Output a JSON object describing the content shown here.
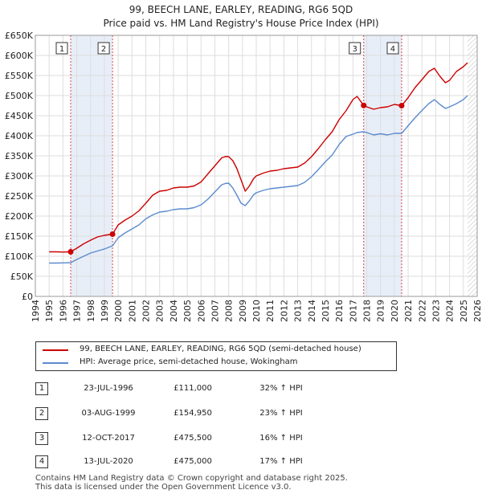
{
  "chart_data": {
    "type": "line",
    "title": "99, BEECH LANE, EARLEY, READING, RG6 5QD",
    "subtitle": "Price paid vs. HM Land Registry's House Price Index (HPI)",
    "xlabel": "",
    "ylabel": "",
    "xlim": [
      1994,
      2026
    ],
    "ylim": [
      0,
      650000
    ],
    "y_ticks": [
      0,
      50000,
      100000,
      150000,
      200000,
      250000,
      300000,
      350000,
      400000,
      450000,
      500000,
      550000,
      600000,
      650000
    ],
    "y_tick_labels": [
      "£0",
      "£50K",
      "£100K",
      "£150K",
      "£200K",
      "£250K",
      "£300K",
      "£350K",
      "£400K",
      "£450K",
      "£500K",
      "£550K",
      "£600K",
      "£650K"
    ],
    "x_ticks": [
      1994,
      1995,
      1996,
      1997,
      1998,
      1999,
      2000,
      2001,
      2002,
      2003,
      2004,
      2005,
      2006,
      2007,
      2008,
      2009,
      2010,
      2011,
      2012,
      2013,
      2014,
      2015,
      2016,
      2017,
      2018,
      2019,
      2020,
      2021,
      2022,
      2023,
      2024,
      2025,
      2026
    ],
    "x_tick_labels": [
      "1994",
      "1995",
      "1996",
      "1997",
      "1998",
      "1999",
      "2000",
      "2001",
      "2002",
      "2003",
      "2004",
      "2005",
      "2006",
      "2007",
      "2008",
      "2009",
      "2010",
      "2011",
      "2012",
      "2013",
      "2014",
      "2015",
      "2016",
      "2017",
      "2018",
      "2019",
      "2020",
      "2021",
      "2022",
      "2023",
      "2024",
      "2025",
      "2026"
    ],
    "grid": true,
    "series": [
      {
        "name": "99, BEECH LANE, EARLEY, READING, RG6 5QD (semi-detached house)",
        "color": "#cc0000",
        "x": [
          1995.0,
          1995.5,
          1996.0,
          1996.56,
          1997.0,
          1997.5,
          1998.0,
          1998.5,
          1999.0,
          1999.59,
          2000.0,
          2000.5,
          2001.0,
          2001.5,
          2002.0,
          2002.5,
          2003.0,
          2003.5,
          2004.0,
          2004.5,
          2005.0,
          2005.5,
          2006.0,
          2006.5,
          2007.0,
          2007.5,
          2007.75,
          2008.0,
          2008.3,
          2008.6,
          2008.9,
          2009.2,
          2009.5,
          2009.8,
          2010.0,
          2010.5,
          2011.0,
          2011.5,
          2012.0,
          2012.5,
          2013.0,
          2013.5,
          2014.0,
          2014.5,
          2015.0,
          2015.5,
          2016.0,
          2016.5,
          2017.0,
          2017.3,
          2017.78,
          2018.0,
          2018.5,
          2019.0,
          2019.5,
          2020.0,
          2020.53,
          2021.0,
          2021.5,
          2022.0,
          2022.5,
          2022.9,
          2023.3,
          2023.7,
          2024.0,
          2024.5,
          2025.0,
          2025.3
        ],
        "values": [
          111000,
          111000,
          110500,
          111000,
          120000,
          131000,
          140000,
          148000,
          152000,
          154950,
          178000,
          190000,
          200000,
          213000,
          232000,
          252000,
          262000,
          264000,
          270000,
          272000,
          272000,
          275000,
          285000,
          305000,
          325000,
          345000,
          348000,
          348000,
          338000,
          318000,
          290000,
          262000,
          275000,
          293000,
          300000,
          307000,
          312000,
          314000,
          318000,
          320000,
          322000,
          332000,
          348000,
          368000,
          390000,
          410000,
          440000,
          462000,
          490000,
          498000,
          475500,
          472000,
          466000,
          470000,
          472000,
          478000,
          475000,
          495000,
          520000,
          540000,
          560000,
          568000,
          548000,
          532000,
          538000,
          560000,
          572000,
          582000
        ]
      },
      {
        "name": "HPI: Average price, semi-detached house, Wokingham",
        "color": "#5b8bd0",
        "x": [
          1995.0,
          1995.5,
          1996.0,
          1996.56,
          1997.0,
          1997.5,
          1998.0,
          1998.5,
          1999.0,
          1999.59,
          2000.0,
          2000.5,
          2001.0,
          2001.5,
          2002.0,
          2002.5,
          2003.0,
          2003.5,
          2004.0,
          2004.5,
          2005.0,
          2005.5,
          2006.0,
          2006.5,
          2007.0,
          2007.5,
          2007.75,
          2008.0,
          2008.3,
          2008.6,
          2008.9,
          2009.2,
          2009.5,
          2009.8,
          2010.0,
          2010.5,
          2011.0,
          2011.5,
          2012.0,
          2012.5,
          2013.0,
          2013.5,
          2014.0,
          2014.5,
          2015.0,
          2015.5,
          2016.0,
          2016.5,
          2017.0,
          2017.3,
          2017.78,
          2018.0,
          2018.5,
          2019.0,
          2019.5,
          2020.0,
          2020.53,
          2021.0,
          2021.5,
          2022.0,
          2022.5,
          2022.9,
          2023.3,
          2023.7,
          2024.0,
          2024.5,
          2025.0,
          2025.3
        ],
        "values": [
          83000,
          83000,
          83500,
          84000,
          92000,
          100000,
          108000,
          113000,
          118000,
          126000,
          146000,
          158000,
          168000,
          178000,
          193000,
          203000,
          210000,
          212000,
          216000,
          218000,
          218000,
          221000,
          228000,
          242000,
          260000,
          278000,
          281000,
          282000,
          270000,
          252000,
          232000,
          226000,
          238000,
          253000,
          258000,
          264000,
          268000,
          270000,
          272000,
          274000,
          276000,
          284000,
          298000,
          316000,
          335000,
          352000,
          378000,
          398000,
          404000,
          408000,
          410000,
          408000,
          402000,
          405000,
          402000,
          406000,
          406000,
          425000,
          445000,
          463000,
          480000,
          490000,
          478000,
          468000,
          472000,
          480000,
          490000,
          500000
        ]
      }
    ],
    "annotations": [
      {
        "label": "1",
        "x": 1996.56,
        "value": 111000
      },
      {
        "label": "2",
        "x": 1999.59,
        "value": 154950
      },
      {
        "label": "3",
        "x": 2017.78,
        "value": 475500
      },
      {
        "label": "4",
        "x": 2020.53,
        "value": 475000
      }
    ]
  },
  "legend": {
    "property_label": "99, BEECH LANE, EARLEY, READING, RG6 5QD (semi-detached house)",
    "hpi_label": "HPI: Average price, semi-detached house, Wokingham"
  },
  "sales": [
    {
      "num": "1",
      "date": "23-JUL-1996",
      "price": "£111,000",
      "hpi": "32% ↑ HPI"
    },
    {
      "num": "2",
      "date": "03-AUG-1999",
      "price": "£154,950",
      "hpi": "23% ↑ HPI"
    },
    {
      "num": "3",
      "date": "12-OCT-2017",
      "price": "£475,500",
      "hpi": "16% ↑ HPI"
    },
    {
      "num": "4",
      "date": "13-JUL-2020",
      "price": "£475,000",
      "hpi": "17% ↑ HPI"
    }
  ],
  "footer": {
    "line1": "Contains HM Land Registry data © Crown copyright and database right 2025.",
    "line2": "This data is licensed under the Open Government Licence v3.0."
  },
  "colors": {
    "property": "#cc0000",
    "hpi": "#5b8bd0",
    "shade": "#e8eef8",
    "future_hatch": "#bbbbbb"
  }
}
